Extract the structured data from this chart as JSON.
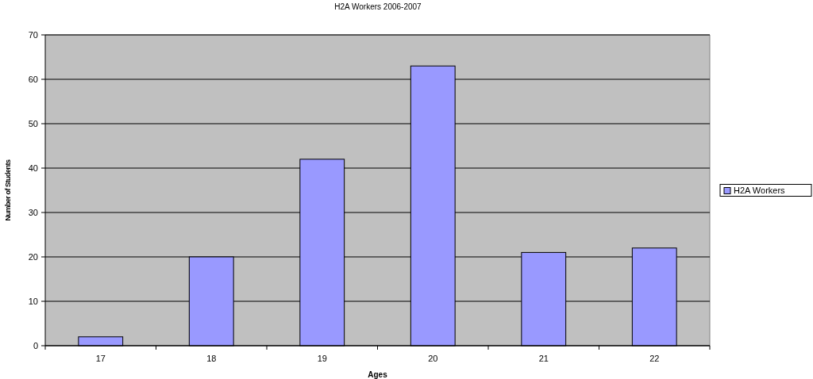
{
  "chart_data": {
    "type": "bar",
    "title": "H2A Workers 2006-2007",
    "xlabel": "Ages",
    "ylabel": "Number of Students",
    "categories": [
      "17",
      "18",
      "19",
      "20",
      "21",
      "22"
    ],
    "series": [
      {
        "name": "H2A Workers",
        "color": "#9999ff",
        "values": [
          2,
          20,
          42,
          63,
          21,
          22
        ]
      }
    ],
    "ylim": [
      0,
      70
    ],
    "yticks": [
      0,
      10,
      20,
      30,
      40,
      50,
      60,
      70
    ],
    "grid": "y",
    "legend": "right"
  }
}
